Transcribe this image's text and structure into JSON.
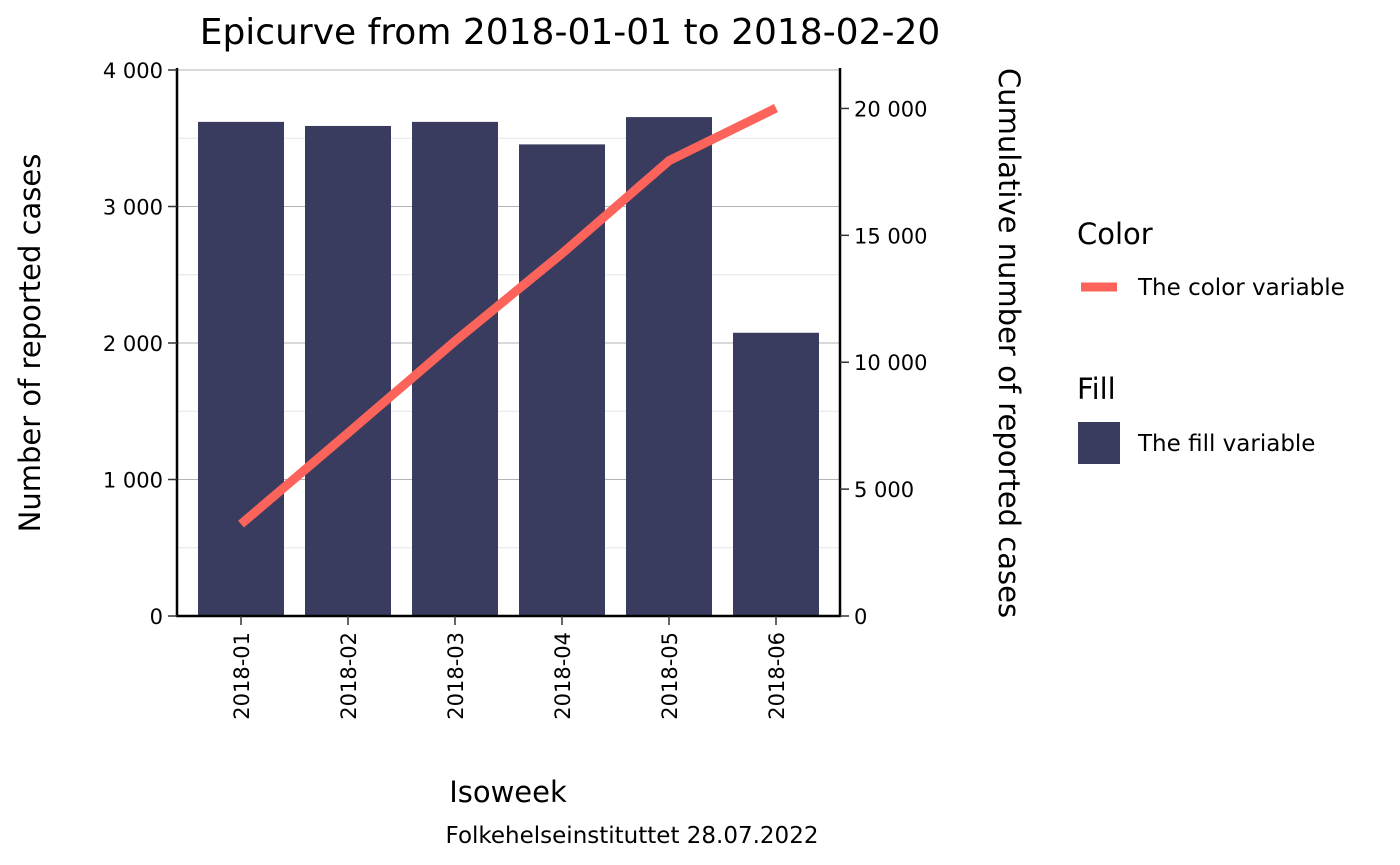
{
  "chart_data": {
    "type": "bar",
    "title": "Epicurve from 2018-01-01 to 2018-02-20",
    "xlabel": "Isoweek",
    "ylabel": "Number of reported cases",
    "y2label": "Cumulative number of reported cases",
    "caption": "Folkehelseinstituttet 28.07.2022",
    "categories": [
      "2018-01",
      "2018-02",
      "2018-03",
      "2018-04",
      "2018-05",
      "2018-06"
    ],
    "ylim": [
      0,
      4000
    ],
    "y2lim": [
      0,
      21909
    ],
    "y_ticks": [
      0,
      1000,
      2000,
      3000,
      4000
    ],
    "y_tick_labels": [
      "0",
      "1 000",
      "2 000",
      "3 000",
      "4 000"
    ],
    "y2_ticks": [
      0,
      5000,
      10000,
      15000,
      20000
    ],
    "y2_tick_labels": [
      "0",
      "5 000",
      "10 000",
      "15 000",
      "20 000"
    ],
    "grid": true,
    "series": [
      {
        "type": "bar",
        "axis": "left",
        "values": [
          3620,
          3590,
          3620,
          3455,
          3655,
          2075
        ],
        "color": "#393c5e"
      },
      {
        "type": "line",
        "axis": "right",
        "values": [
          3620,
          7210,
          10830,
          14285,
          17940,
          20015
        ],
        "color": "#fc635a"
      }
    ],
    "legend": {
      "placement": "right",
      "groups": [
        {
          "title": "Color",
          "label": "The color variable",
          "kind": "line",
          "color": "#fc635a"
        },
        {
          "title": "Fill",
          "label": "The fill variable",
          "kind": "fill",
          "color": "#393c5e"
        }
      ]
    }
  }
}
